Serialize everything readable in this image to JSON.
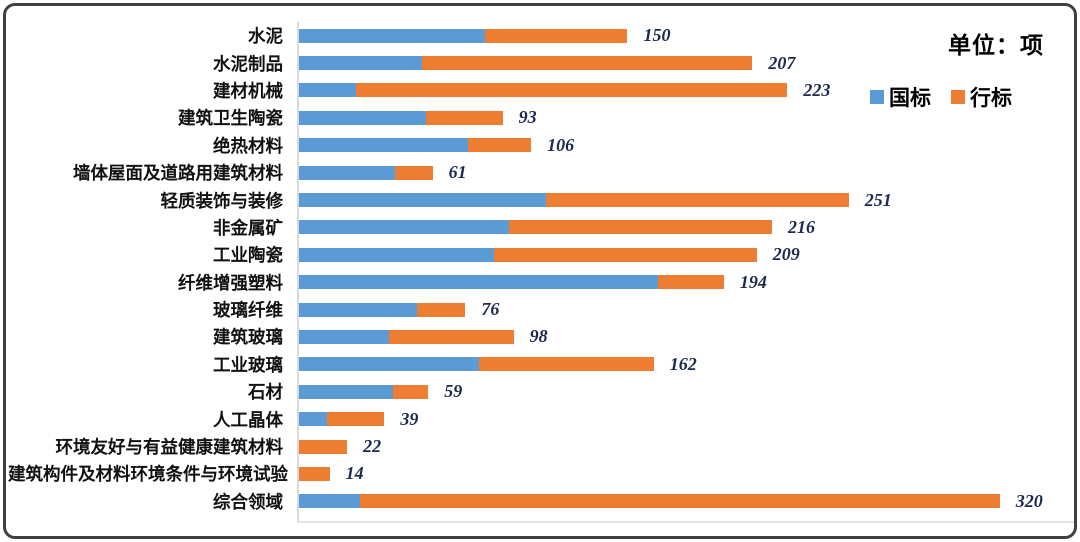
{
  "unit_label": "单位：项",
  "legend": [
    {
      "label": "国标",
      "color": "#5B9BD5"
    },
    {
      "label": "行标",
      "color": "#ED7D31"
    }
  ],
  "colors": {
    "guobiao_blue": "#5B9BD5",
    "hangbiao_orange": "#ED7D31",
    "axis_line": "#d9d9d9",
    "value_label": "#1b2a4e",
    "frame_border": "#3f3f3f"
  },
  "chart_data": {
    "type": "bar",
    "orientation": "horizontal",
    "stacked": true,
    "legend_position": "top-right",
    "grid": false,
    "value_axis_visible": false,
    "xlim": [
      0,
      330
    ],
    "title": "",
    "unit_note": "单位：项",
    "categories": [
      "水泥",
      "水泥制品",
      "建材机械",
      "建筑卫生陶瓷",
      "绝热材料",
      "墙体屋面及道路用建筑材料",
      "轻质装饰与装修",
      "非金属矿",
      "工业陶瓷",
      "纤维增强塑料",
      "玻璃纤维",
      "建筑玻璃",
      "工业玻璃",
      "石材",
      "人工晶体",
      "环境友好与有益健康建筑材料",
      "建筑构件及材料环境条件与环境试验",
      "综合领域"
    ],
    "series": [
      {
        "name": "国标",
        "values": [
          85,
          56,
          26,
          58,
          77,
          44,
          113,
          96,
          89,
          164,
          54,
          41,
          82,
          43,
          13,
          0,
          0,
          28
        ]
      },
      {
        "name": "行标",
        "values": [
          65,
          151,
          197,
          35,
          29,
          17,
          138,
          120,
          120,
          30,
          22,
          57,
          80,
          16,
          26,
          22,
          14,
          292
        ]
      }
    ],
    "totals": [
      150,
      207,
      223,
      93,
      106,
      61,
      251,
      216,
      209,
      194,
      76,
      98,
      162,
      59,
      39,
      22,
      14,
      320
    ]
  }
}
